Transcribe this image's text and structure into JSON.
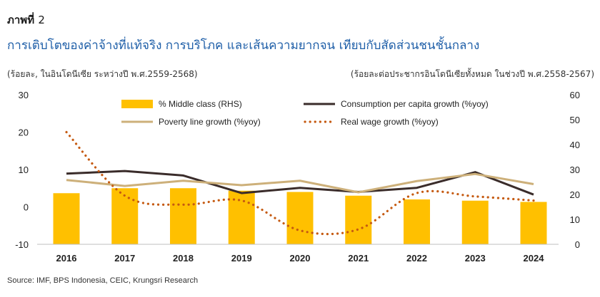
{
  "figure": {
    "label": "ภาพที่",
    "number": "2"
  },
  "title": "การเติบโตของค่าจ้างที่แท้จริง การบริโภค และเส้นความยากจน เทียบกับสัดส่วนชนชั้นกลาง",
  "left_unit": "(ร้อยละ, ในอินโดนีเซีย ระหว่างปี พ.ศ.2559-2568)",
  "right_unit": "(ร้อยละต่อประชากรอินโดนีเซียทั้งหมด ในช่วงปี พ.ศ.2558-2567)",
  "source": "Source: IMF, BPS Indonesia, CEIC, Krungsri Research",
  "chart_data": {
    "type": "bar",
    "categories": [
      "2016",
      "2017",
      "2018",
      "2019",
      "2020",
      "2021",
      "2022",
      "2023",
      "2024"
    ],
    "y_left": {
      "ylim": [
        -10,
        30
      ],
      "ticks": [
        "30",
        "20",
        "10",
        "0",
        "-10"
      ],
      "tick_values": [
        30,
        20,
        10,
        0,
        -10
      ]
    },
    "y_right": {
      "ylim": [
        0,
        60
      ],
      "ticks": [
        "60",
        "50",
        "40",
        "30",
        "20",
        "10",
        "0"
      ],
      "tick_values": [
        60,
        50,
        40,
        30,
        20,
        10,
        0
      ]
    },
    "grid": false,
    "legend_position": "top",
    "series": [
      {
        "name": "% Middle class (RHS)",
        "type": "bar",
        "axis": "right",
        "color": "#FFC000",
        "values": [
          20.5,
          22.5,
          22.5,
          21.5,
          21.0,
          19.5,
          18.0,
          17.5,
          17.0
        ]
      },
      {
        "name": "Consumption per capita growth (%yoy)",
        "type": "line",
        "axis": "left",
        "color": "#3a2c2a",
        "values": [
          8.9,
          9.6,
          8.4,
          3.7,
          5.1,
          4.0,
          5.1,
          9.3,
          3.3
        ]
      },
      {
        "name": "Poverty line growth (%yoy)",
        "type": "line",
        "axis": "left",
        "color": "#cdb07a",
        "values": [
          7.2,
          5.6,
          7.0,
          5.8,
          7.0,
          3.9,
          6.9,
          8.8,
          6.1
        ]
      },
      {
        "name": "Real wage growth (%yoy)",
        "type": "dotted-line",
        "axis": "left",
        "color": "#c55a11",
        "values": [
          20.0,
          3.0,
          0.6,
          1.7,
          -6.3,
          -6.0,
          3.7,
          2.8,
          1.7
        ]
      }
    ]
  }
}
